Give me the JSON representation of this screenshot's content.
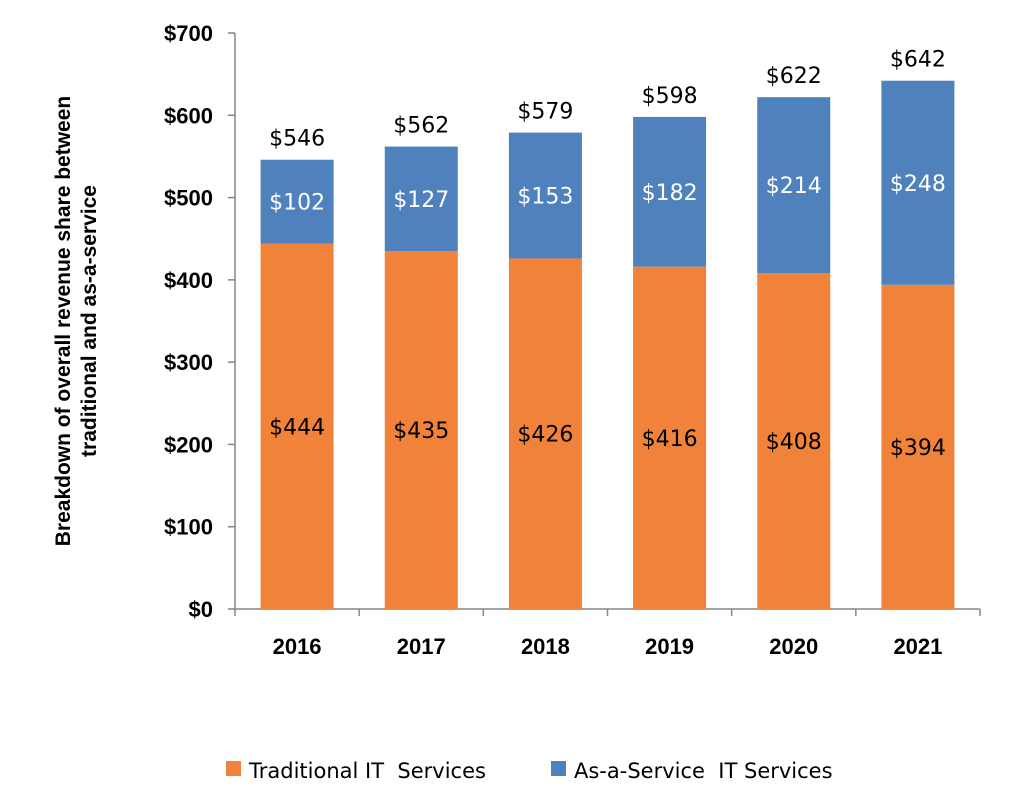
{
  "chart_data": {
    "type": "bar",
    "stacked": true,
    "title": "",
    "xlabel": "",
    "ylabel": "Breakdown of overall revenue share between traditional and as-a-service",
    "ylabel_lines": [
      "Breakdown of overall revenue share between",
      "traditional and as-a-service"
    ],
    "categories": [
      "2016",
      "2017",
      "2018",
      "2019",
      "2020",
      "2021"
    ],
    "series": [
      {
        "name": "Traditional IT  Services",
        "color": "#F0823A",
        "label_color": "#000000",
        "values": [
          444,
          435,
          426,
          416,
          408,
          394
        ],
        "labels": [
          "$444",
          "$435",
          "$426",
          "$416",
          "$408",
          "$394"
        ]
      },
      {
        "name": "As-a-Service  IT Services",
        "color": "#4F81BD",
        "label_color": "#FFFFFF",
        "values": [
          102,
          127,
          153,
          182,
          214,
          248
        ],
        "labels": [
          "$102",
          "$127",
          "$153",
          "$182",
          "$214",
          "$248"
        ]
      }
    ],
    "totals": [
      546,
      562,
      579,
      598,
      622,
      642
    ],
    "total_labels": [
      "$546",
      "$562",
      "$579",
      "$598",
      "$622",
      "$642"
    ],
    "ylim": [
      0,
      700
    ],
    "yticks": [
      0,
      100,
      200,
      300,
      400,
      500,
      600,
      700
    ],
    "ytick_labels": [
      "$0",
      "$100",
      "$200",
      "$300",
      "$400",
      "$500",
      "$600",
      "$700"
    ],
    "grid": false,
    "legend_position": "bottom"
  }
}
